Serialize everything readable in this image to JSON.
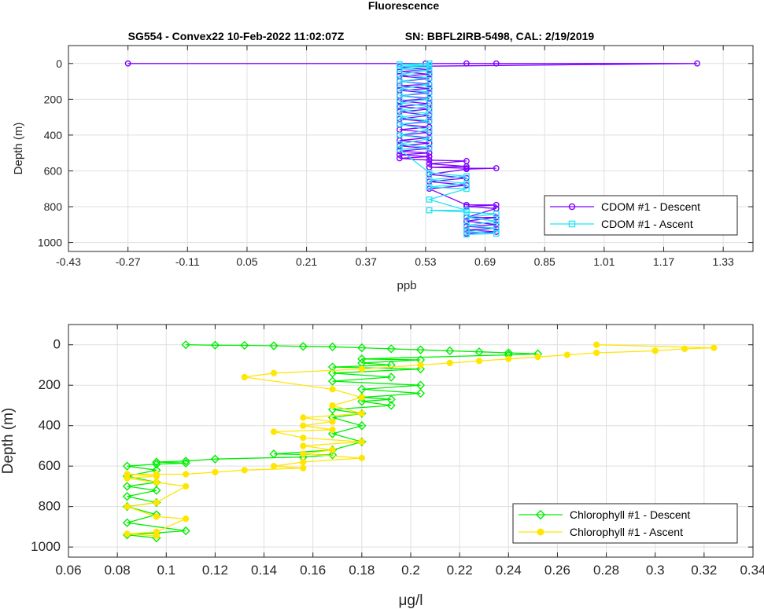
{
  "figure": {
    "title": "Fluorescence",
    "subtitle_left": "SG554 - Convex22 10-Feb-2022 11:02:07Z",
    "subtitle_right": "SN: BBFL2IRB-5498, CAL: 2/19/2019"
  },
  "chart_data": [
    {
      "type": "line",
      "xlabel": "ppb",
      "ylabel": "Depth (m)",
      "xlim": [
        -0.43,
        1.41
      ],
      "ylim": [
        1050,
        -100
      ],
      "y_reversed": true,
      "xticks": [
        "-0.43",
        "-0.27",
        "-0.11",
        "0.05",
        "0.21",
        "0.37",
        "0.53",
        "0.69",
        "0.85",
        "1.01",
        "1.17",
        "1.33"
      ],
      "yticks": [
        "0",
        "200",
        "400",
        "600",
        "800",
        "1000"
      ],
      "grid": true,
      "legend_position": "bottom-right",
      "series": [
        {
          "name": "CDOM #1 - Descent",
          "color": "#7f00ff",
          "marker": "circle",
          "x": [
            -0.27,
            0.53,
            0.64,
            0.72,
            1.26,
            0.54,
            0.46,
            0.54,
            0.46,
            0.54,
            0.46,
            0.54,
            0.46,
            0.54,
            0.46,
            0.54,
            0.46,
            0.54,
            0.46,
            0.54,
            0.46,
            0.54,
            0.46,
            0.54,
            0.46,
            0.54,
            0.46,
            0.54,
            0.46,
            0.54,
            0.46,
            0.54,
            0.46,
            0.54,
            0.46,
            0.54,
            0.46,
            0.54,
            0.46,
            0.54,
            0.46,
            0.54,
            0.46,
            0.54,
            0.64,
            0.54,
            0.64,
            0.54,
            0.64,
            0.72,
            0.64,
            0.54,
            0.64,
            0.54,
            0.64,
            0.54,
            0.64,
            0.72,
            0.64,
            0.72,
            0.64,
            0.72,
            0.64,
            0.72,
            0.64,
            0.72,
            0.64,
            0.72,
            0.64
          ],
          "y": [
            0,
            0,
            0,
            0,
            0,
            15,
            20,
            35,
            45,
            60,
            70,
            85,
            100,
            115,
            125,
            140,
            150,
            165,
            180,
            195,
            210,
            225,
            240,
            255,
            270,
            290,
            310,
            325,
            340,
            355,
            370,
            385,
            400,
            415,
            430,
            445,
            460,
            475,
            490,
            500,
            510,
            520,
            530,
            540,
            545,
            560,
            575,
            580,
            585,
            585,
            590,
            620,
            640,
            660,
            680,
            700,
            790,
            790,
            800,
            810,
            860,
            860,
            880,
            900,
            910,
            920,
            930,
            940,
            950
          ]
        },
        {
          "name": "CDOM #1 - Ascent",
          "color": "#22e3f5",
          "marker": "square",
          "x": [
            0.64,
            0.72,
            0.64,
            0.72,
            0.64,
            0.72,
            0.64,
            0.72,
            0.64,
            0.54,
            0.64,
            0.54,
            0.64,
            0.54,
            0.64,
            0.54,
            0.64,
            0.54,
            0.46,
            0.54,
            0.46,
            0.54,
            0.46,
            0.54,
            0.46,
            0.54,
            0.46,
            0.54,
            0.46,
            0.54,
            0.46,
            0.54,
            0.46,
            0.54,
            0.46,
            0.54,
            0.46,
            0.54,
            0.46,
            0.54,
            0.46,
            0.54,
            0.46,
            0.54,
            0.46,
            0.54
          ],
          "y": [
            955,
            950,
            940,
            920,
            905,
            880,
            860,
            840,
            830,
            820,
            820,
            760,
            700,
            690,
            670,
            650,
            630,
            610,
            480,
            470,
            450,
            420,
            400,
            370,
            340,
            320,
            300,
            280,
            260,
            240,
            220,
            200,
            180,
            160,
            140,
            120,
            100,
            80,
            60,
            40,
            30,
            20,
            15,
            10,
            5,
            0
          ]
        }
      ]
    },
    {
      "type": "line",
      "xlabel": "μg/l",
      "ylabel": "Depth (m)",
      "xlim": [
        0.06,
        0.34
      ],
      "ylim": [
        1050,
        -100
      ],
      "y_reversed": true,
      "xticks": [
        "0.06",
        "0.08",
        "0.1",
        "0.12",
        "0.14",
        "0.16",
        "0.18",
        "0.2",
        "0.22",
        "0.24",
        "0.26",
        "0.28",
        "0.3",
        "0.32",
        "0.34"
      ],
      "yticks": [
        "0",
        "200",
        "400",
        "600",
        "800",
        "1000"
      ],
      "grid": true,
      "legend_position": "bottom-right",
      "series": [
        {
          "name": "Chlorophyll #1 - Descent",
          "color": "#00ee00",
          "marker": "diamond",
          "x": [
            0.108,
            0.12,
            0.132,
            0.144,
            0.156,
            0.168,
            0.18,
            0.192,
            0.204,
            0.216,
            0.228,
            0.24,
            0.252,
            0.24,
            0.18,
            0.204,
            0.18,
            0.192,
            0.168,
            0.204,
            0.168,
            0.192,
            0.168,
            0.204,
            0.18,
            0.204,
            0.18,
            0.192,
            0.18,
            0.192,
            0.168,
            0.18,
            0.168,
            0.18,
            0.168,
            0.18,
            0.168,
            0.144,
            0.168,
            0.156,
            0.12,
            0.108,
            0.096,
            0.108,
            0.096,
            0.084,
            0.096,
            0.084,
            0.096,
            0.084,
            0.096,
            0.084,
            0.096,
            0.084,
            0.096,
            0.084,
            0.108,
            0.096,
            0.084,
            0.096
          ],
          "y": [
            0,
            2,
            3,
            5,
            8,
            10,
            15,
            20,
            25,
            30,
            35,
            40,
            45,
            50,
            70,
            75,
            90,
            100,
            110,
            120,
            140,
            160,
            180,
            200,
            220,
            240,
            260,
            270,
            280,
            300,
            320,
            340,
            360,
            400,
            440,
            480,
            520,
            540,
            545,
            555,
            565,
            575,
            580,
            585,
            590,
            600,
            620,
            650,
            680,
            700,
            720,
            750,
            780,
            800,
            840,
            880,
            920,
            930,
            940,
            955
          ]
        },
        {
          "name": "Chlorophyll #1 - Ascent",
          "color": "#ffe600",
          "marker": "circle-filled",
          "x": [
            0.096,
            0.084,
            0.096,
            0.108,
            0.096,
            0.084,
            0.096,
            0.108,
            0.096,
            0.084,
            0.096,
            0.084,
            0.096,
            0.108,
            0.12,
            0.132,
            0.156,
            0.144,
            0.156,
            0.18,
            0.156,
            0.168,
            0.156,
            0.18,
            0.156,
            0.144,
            0.168,
            0.156,
            0.168,
            0.156,
            0.18,
            0.168,
            0.18,
            0.168,
            0.132,
            0.144,
            0.18,
            0.204,
            0.216,
            0.228,
            0.24,
            0.252,
            0.264,
            0.276,
            0.3,
            0.312,
            0.324,
            0.276
          ],
          "y": [
            945,
            935,
            925,
            860,
            850,
            800,
            780,
            700,
            680,
            660,
            650,
            640,
            640,
            640,
            630,
            620,
            610,
            600,
            580,
            560,
            540,
            520,
            500,
            480,
            460,
            430,
            420,
            400,
            380,
            360,
            340,
            300,
            260,
            220,
            160,
            140,
            120,
            100,
            90,
            80,
            70,
            60,
            50,
            40,
            30,
            20,
            15,
            0
          ]
        }
      ]
    }
  ]
}
